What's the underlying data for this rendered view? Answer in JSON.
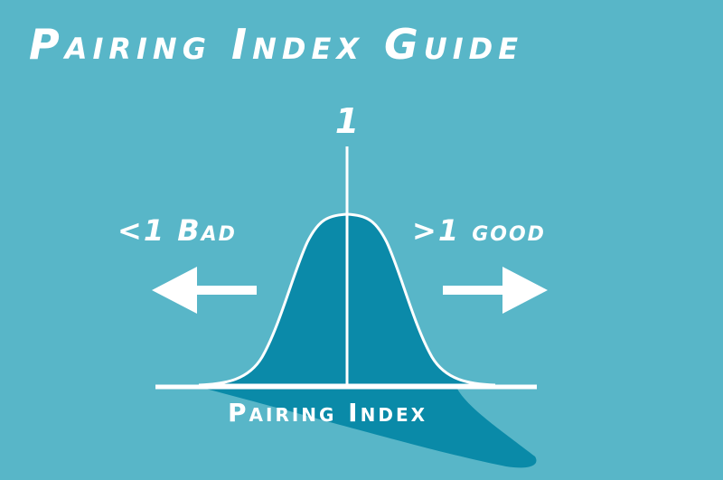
{
  "title": "Pairing Index Guide",
  "peak_label": "1",
  "left_label": "<1 Bad",
  "right_label": ">1 good",
  "axis_label": "Pairing Index",
  "colors": {
    "background": "#58b6c8",
    "curve_fill": "#0b8aa9",
    "shadow": "#0a8aa8",
    "line": "#ffffff"
  },
  "icons": {
    "left": "arrow-left-icon",
    "right": "arrow-right-icon"
  }
}
